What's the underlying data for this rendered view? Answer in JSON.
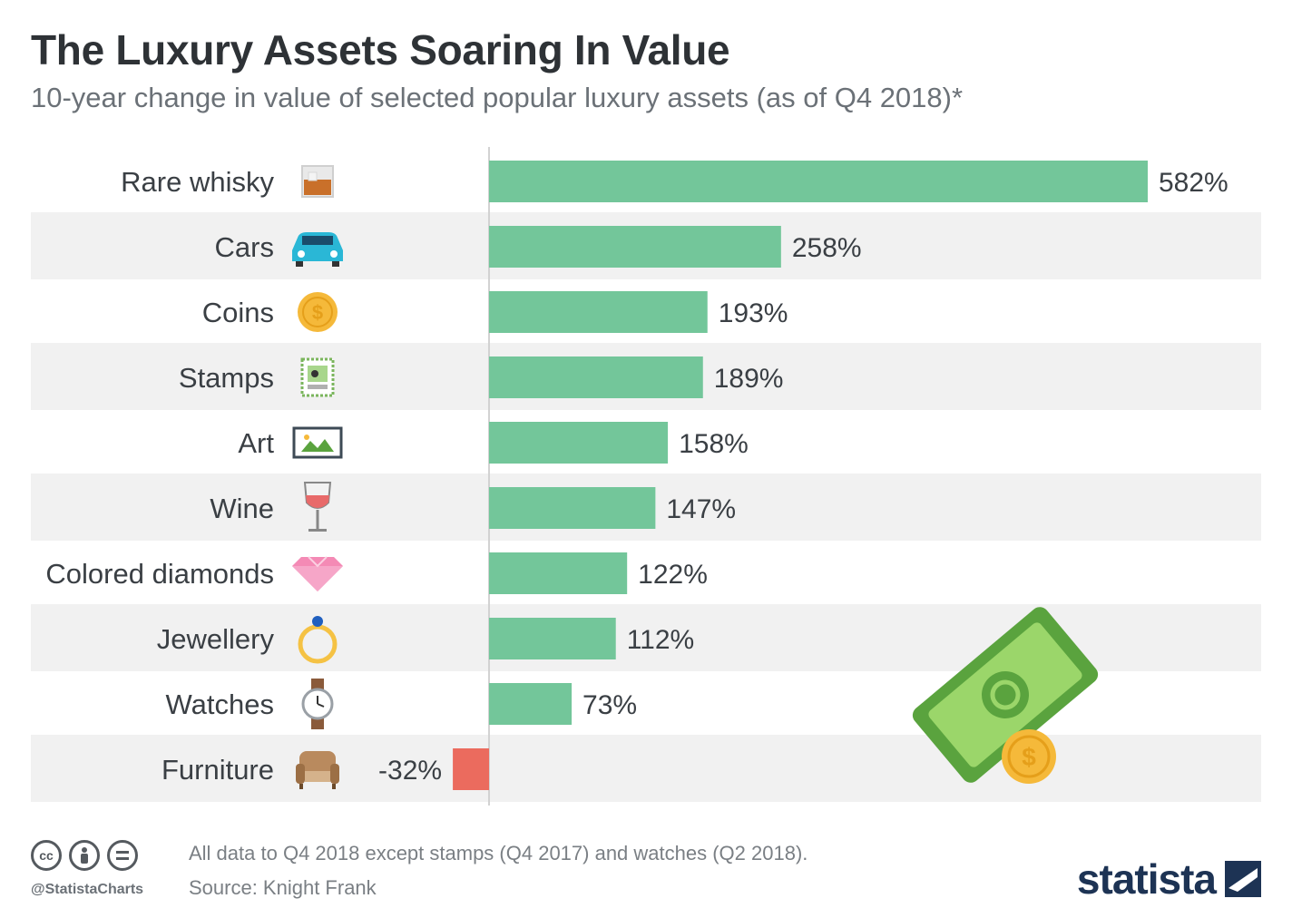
{
  "header": {
    "title": "The Luxury Assets Soaring In Value",
    "subtitle": "10-year change in value of selected popular luxury assets (as of Q4 2018)*"
  },
  "chart_data": {
    "type": "bar",
    "orientation": "horizontal",
    "categories": [
      "Rare whisky",
      "Cars",
      "Coins",
      "Stamps",
      "Art",
      "Wine",
      "Colored diamonds",
      "Jewellery",
      "Watches",
      "Furniture"
    ],
    "values": [
      582,
      258,
      193,
      189,
      158,
      147,
      122,
      112,
      73,
      -32
    ],
    "value_labels": [
      "582%",
      "258%",
      "193%",
      "189%",
      "158%",
      "147%",
      "122%",
      "112%",
      "73%",
      "-32%"
    ],
    "icons": [
      "whisky-glass-icon",
      "car-icon",
      "coin-icon",
      "stamp-icon",
      "picture-frame-icon",
      "wine-glass-icon",
      "diamond-icon",
      "ring-icon",
      "wristwatch-icon",
      "armchair-icon"
    ],
    "colors": {
      "positive": "#73c69a",
      "negative": "#eb6b5e",
      "band": "#f1f1f1"
    }
  },
  "footer": {
    "handle": "@StatistaCharts",
    "note": "All data to Q4 2018 except stamps (Q4 2017) and watches (Q2 2018).",
    "source": "Source: Knight Frank",
    "brand": "statista",
    "license_icons": [
      "cc-icon",
      "attribution-icon",
      "no-derivatives-icon"
    ]
  }
}
